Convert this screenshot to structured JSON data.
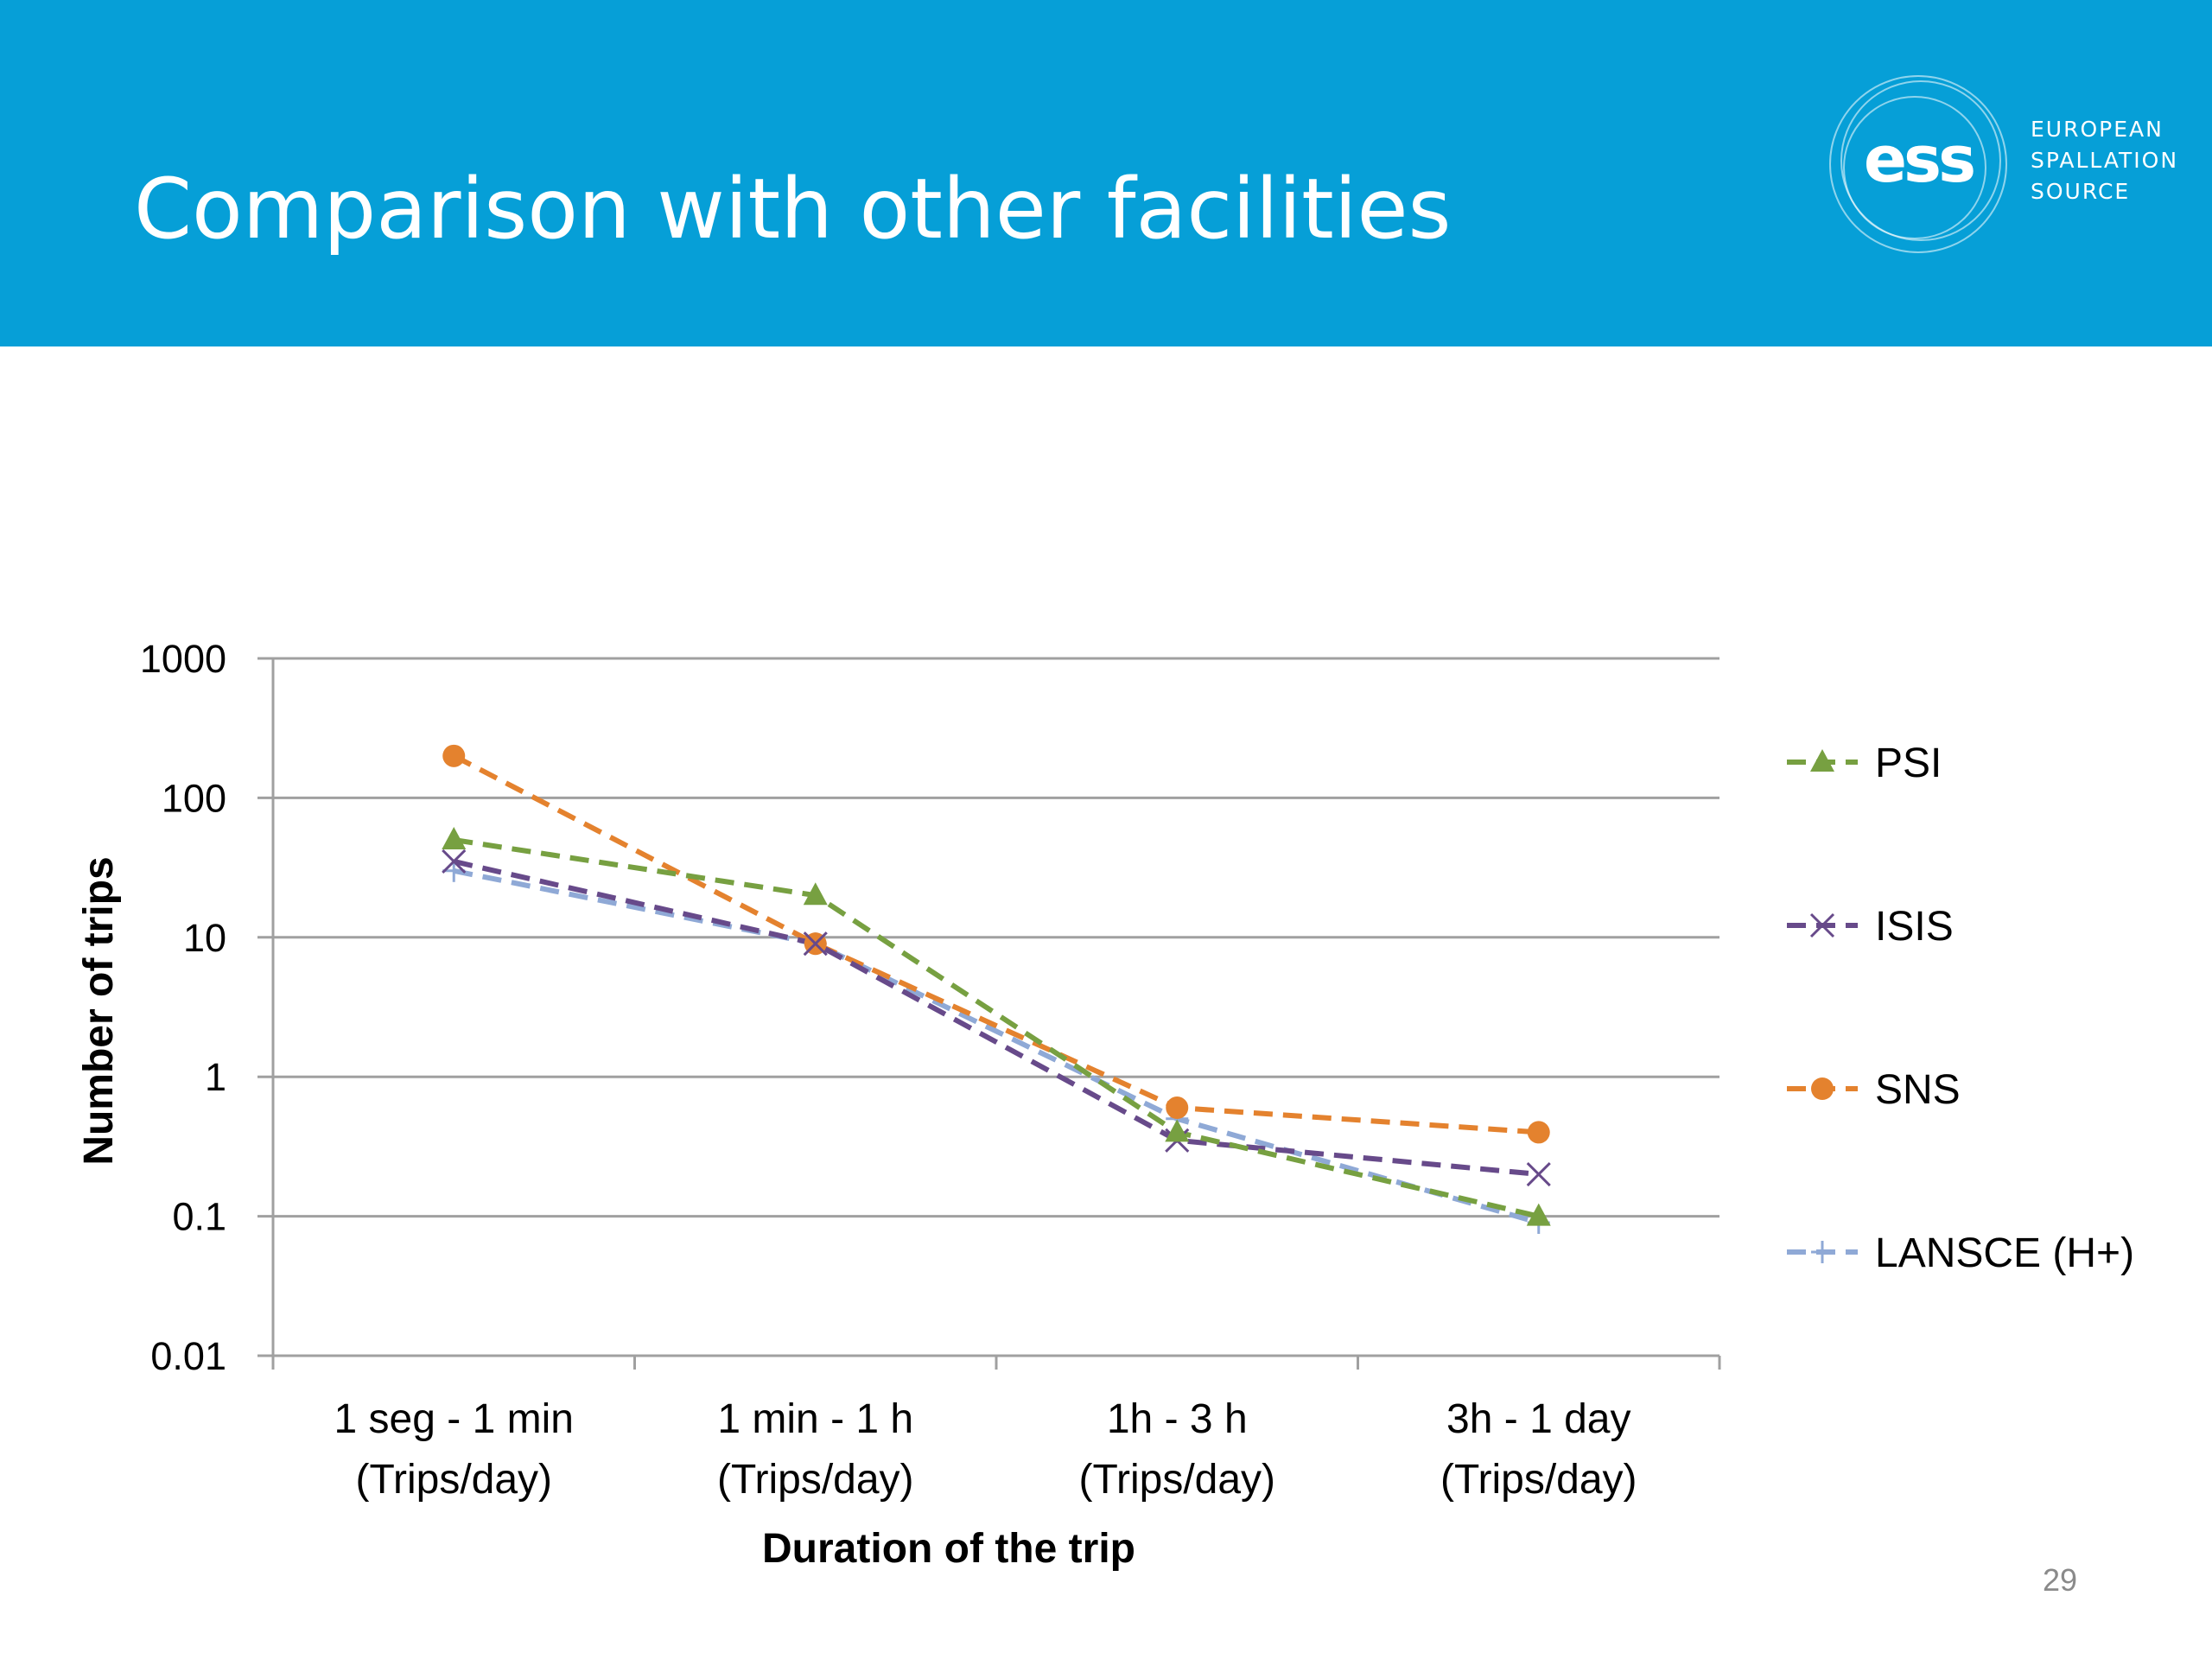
{
  "slide": {
    "title": "Comparison with other facilities",
    "page_number": "29"
  },
  "logo": {
    "mark": "ess",
    "lines": [
      "EUROPEAN",
      "SPALLATION",
      "SOURCE"
    ]
  },
  "colors": {
    "header_bg": "#069fd7",
    "psi": "#77a041",
    "isis": "#674a8a",
    "sns": "#e4822e",
    "lansce": "#8fa9d6",
    "gridline": "#a0a0a0"
  },
  "chart_data": {
    "type": "line",
    "scale": "log",
    "categories": [
      [
        "1 seg - 1 min",
        "(Trips/day)"
      ],
      [
        "1 min - 1 h",
        "(Trips/day)"
      ],
      [
        "1h - 3 h",
        "(Trips/day)"
      ],
      [
        "3h - 1 day",
        "(Trips/day)"
      ]
    ],
    "ylim": [
      0.01,
      1000
    ],
    "yticks": [
      {
        "value": 1000,
        "label": "1000"
      },
      {
        "value": 100,
        "label": "100"
      },
      {
        "value": 10,
        "label": "10"
      },
      {
        "value": 1,
        "label": "1"
      },
      {
        "value": 0.1,
        "label": "0.1"
      },
      {
        "value": 0.01,
        "label": "0.01"
      }
    ],
    "xlabel": "Duration of the trip",
    "ylabel": "Number of trips",
    "grid": true,
    "legend_position": "right",
    "series": [
      {
        "name": "PSI",
        "marker": "triangle",
        "color": "#77a041",
        "values": [
          50,
          20,
          0.4,
          0.1
        ]
      },
      {
        "name": "ISIS",
        "marker": "x",
        "color": "#674a8a",
        "values": [
          35,
          9,
          0.35,
          0.2
        ]
      },
      {
        "name": "SNS",
        "marker": "circle",
        "color": "#e4822e",
        "values": [
          200,
          9,
          0.6,
          0.4
        ]
      },
      {
        "name": "LANSCE (H+)",
        "marker": "plus",
        "color": "#8fa9d6",
        "values": [
          30,
          9,
          0.5,
          0.09
        ]
      }
    ]
  }
}
